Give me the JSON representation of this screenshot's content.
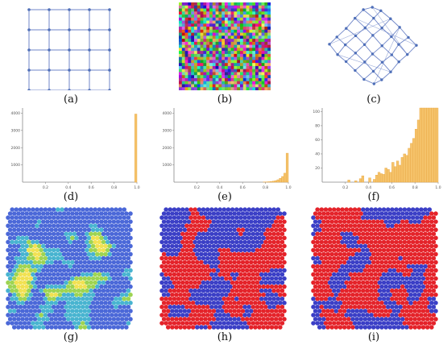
{
  "captions": [
    "(a)",
    "(b)",
    "(c)",
    "(d)",
    "(e)",
    "(f)",
    "(g)",
    "(h)",
    "(i)"
  ],
  "colors": {
    "grid_line": "#6f86c8",
    "grid_node": "#4f6fb8",
    "hist_bar": "#f5c36b",
    "hist_bar_edge": "#e8a640",
    "axis": "#888888",
    "blue": "#3b3fc6",
    "red": "#e4232a",
    "heat_blue": "#4b68d8",
    "heat_cyan": "#48b4d0",
    "heat_green": "#9ed452",
    "heat_yellow": "#f1e152",
    "heat_orange": "#f28a3c"
  },
  "chart_data": [
    {
      "panel": "d",
      "type": "bar",
      "title": "",
      "xticks": [
        "0.2",
        "0.4",
        "0.6",
        "0.8",
        "1.0"
      ],
      "yticks": [
        "1000",
        "2000",
        "3000",
        "4000"
      ],
      "xlim": [
        0,
        1
      ],
      "ylim": [
        0,
        4300
      ],
      "bins": [
        {
          "x": 0.99,
          "value": 3950
        }
      ]
    },
    {
      "panel": "e",
      "type": "bar",
      "title": "",
      "xticks": [
        "0.2",
        "0.4",
        "0.6",
        "0.8",
        "1.0"
      ],
      "yticks": [
        "1000",
        "2000",
        "3000",
        "4000"
      ],
      "xlim": [
        0,
        1
      ],
      "ylim": [
        0,
        4300
      ],
      "bins": [
        {
          "x": 0.79,
          "value": 10
        },
        {
          "x": 0.81,
          "value": 15
        },
        {
          "x": 0.83,
          "value": 25
        },
        {
          "x": 0.85,
          "value": 40
        },
        {
          "x": 0.87,
          "value": 60
        },
        {
          "x": 0.89,
          "value": 90
        },
        {
          "x": 0.91,
          "value": 140
        },
        {
          "x": 0.93,
          "value": 220
        },
        {
          "x": 0.95,
          "value": 330
        },
        {
          "x": 0.97,
          "value": 520
        },
        {
          "x": 0.99,
          "value": 1680
        }
      ]
    },
    {
      "panel": "f",
      "type": "bar",
      "title": "",
      "xticks": [
        "0.2",
        "0.4",
        "0.6",
        "0.8",
        "1.0"
      ],
      "yticks": [
        "20",
        "40",
        "60",
        "80",
        "100"
      ],
      "xlim": [
        0,
        1
      ],
      "ylim": [
        0,
        105
      ],
      "bins": [
        {
          "x": 0.23,
          "value": 3
        },
        {
          "x": 0.29,
          "value": 2
        },
        {
          "x": 0.33,
          "value": 5
        },
        {
          "x": 0.35,
          "value": 9
        },
        {
          "x": 0.41,
          "value": 6
        },
        {
          "x": 0.45,
          "value": 4
        },
        {
          "x": 0.47,
          "value": 10
        },
        {
          "x": 0.49,
          "value": 14
        },
        {
          "x": 0.51,
          "value": 12
        },
        {
          "x": 0.53,
          "value": 11
        },
        {
          "x": 0.55,
          "value": 20
        },
        {
          "x": 0.57,
          "value": 18
        },
        {
          "x": 0.59,
          "value": 14
        },
        {
          "x": 0.61,
          "value": 28
        },
        {
          "x": 0.63,
          "value": 22
        },
        {
          "x": 0.65,
          "value": 30
        },
        {
          "x": 0.67,
          "value": 24
        },
        {
          "x": 0.69,
          "value": 35
        },
        {
          "x": 0.71,
          "value": 40
        },
        {
          "x": 0.73,
          "value": 38
        },
        {
          "x": 0.75,
          "value": 48
        },
        {
          "x": 0.77,
          "value": 55
        },
        {
          "x": 0.79,
          "value": 62
        },
        {
          "x": 0.81,
          "value": 75
        },
        {
          "x": 0.83,
          "value": 88
        },
        {
          "x": 0.85,
          "value": 105
        },
        {
          "x": 0.87,
          "value": 105
        },
        {
          "x": 0.89,
          "value": 105
        },
        {
          "x": 0.91,
          "value": 105
        },
        {
          "x": 0.93,
          "value": 105
        },
        {
          "x": 0.95,
          "value": 105
        },
        {
          "x": 0.97,
          "value": 105
        },
        {
          "x": 0.99,
          "value": 105
        }
      ]
    }
  ]
}
